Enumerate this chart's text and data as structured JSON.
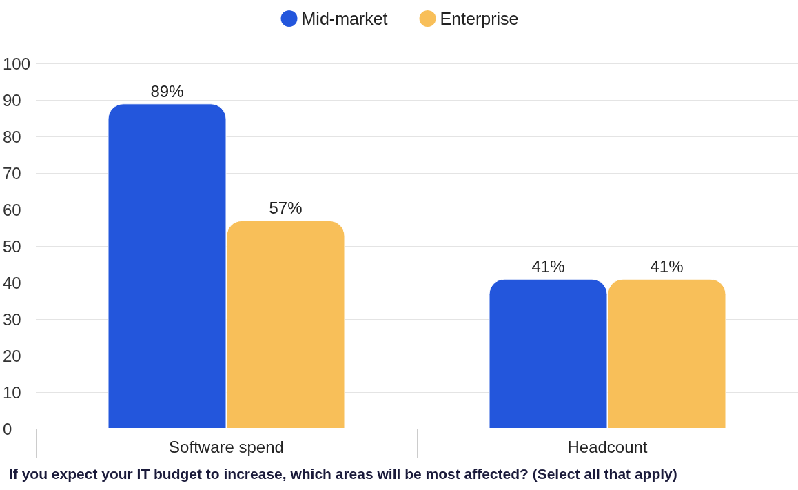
{
  "chart_data": {
    "type": "bar",
    "title": "If you expect your IT budget to increase, which areas will be most affected? (Select all that apply)",
    "categories": [
      "Software spend",
      "Headcount"
    ],
    "series": [
      {
        "name": "Mid-market",
        "color": "#2356dc",
        "values": [
          89,
          41
        ],
        "value_labels": [
          "89%",
          "41%"
        ]
      },
      {
        "name": "Enterprise",
        "color": "#f8bf59",
        "values": [
          57,
          41
        ],
        "value_labels": [
          "57%",
          "41%"
        ]
      }
    ],
    "ylim": [
      0,
      100
    ],
    "yticks": [
      0,
      10,
      20,
      30,
      40,
      50,
      60,
      70,
      80,
      90,
      100
    ],
    "grid": "y",
    "legend": "top"
  }
}
